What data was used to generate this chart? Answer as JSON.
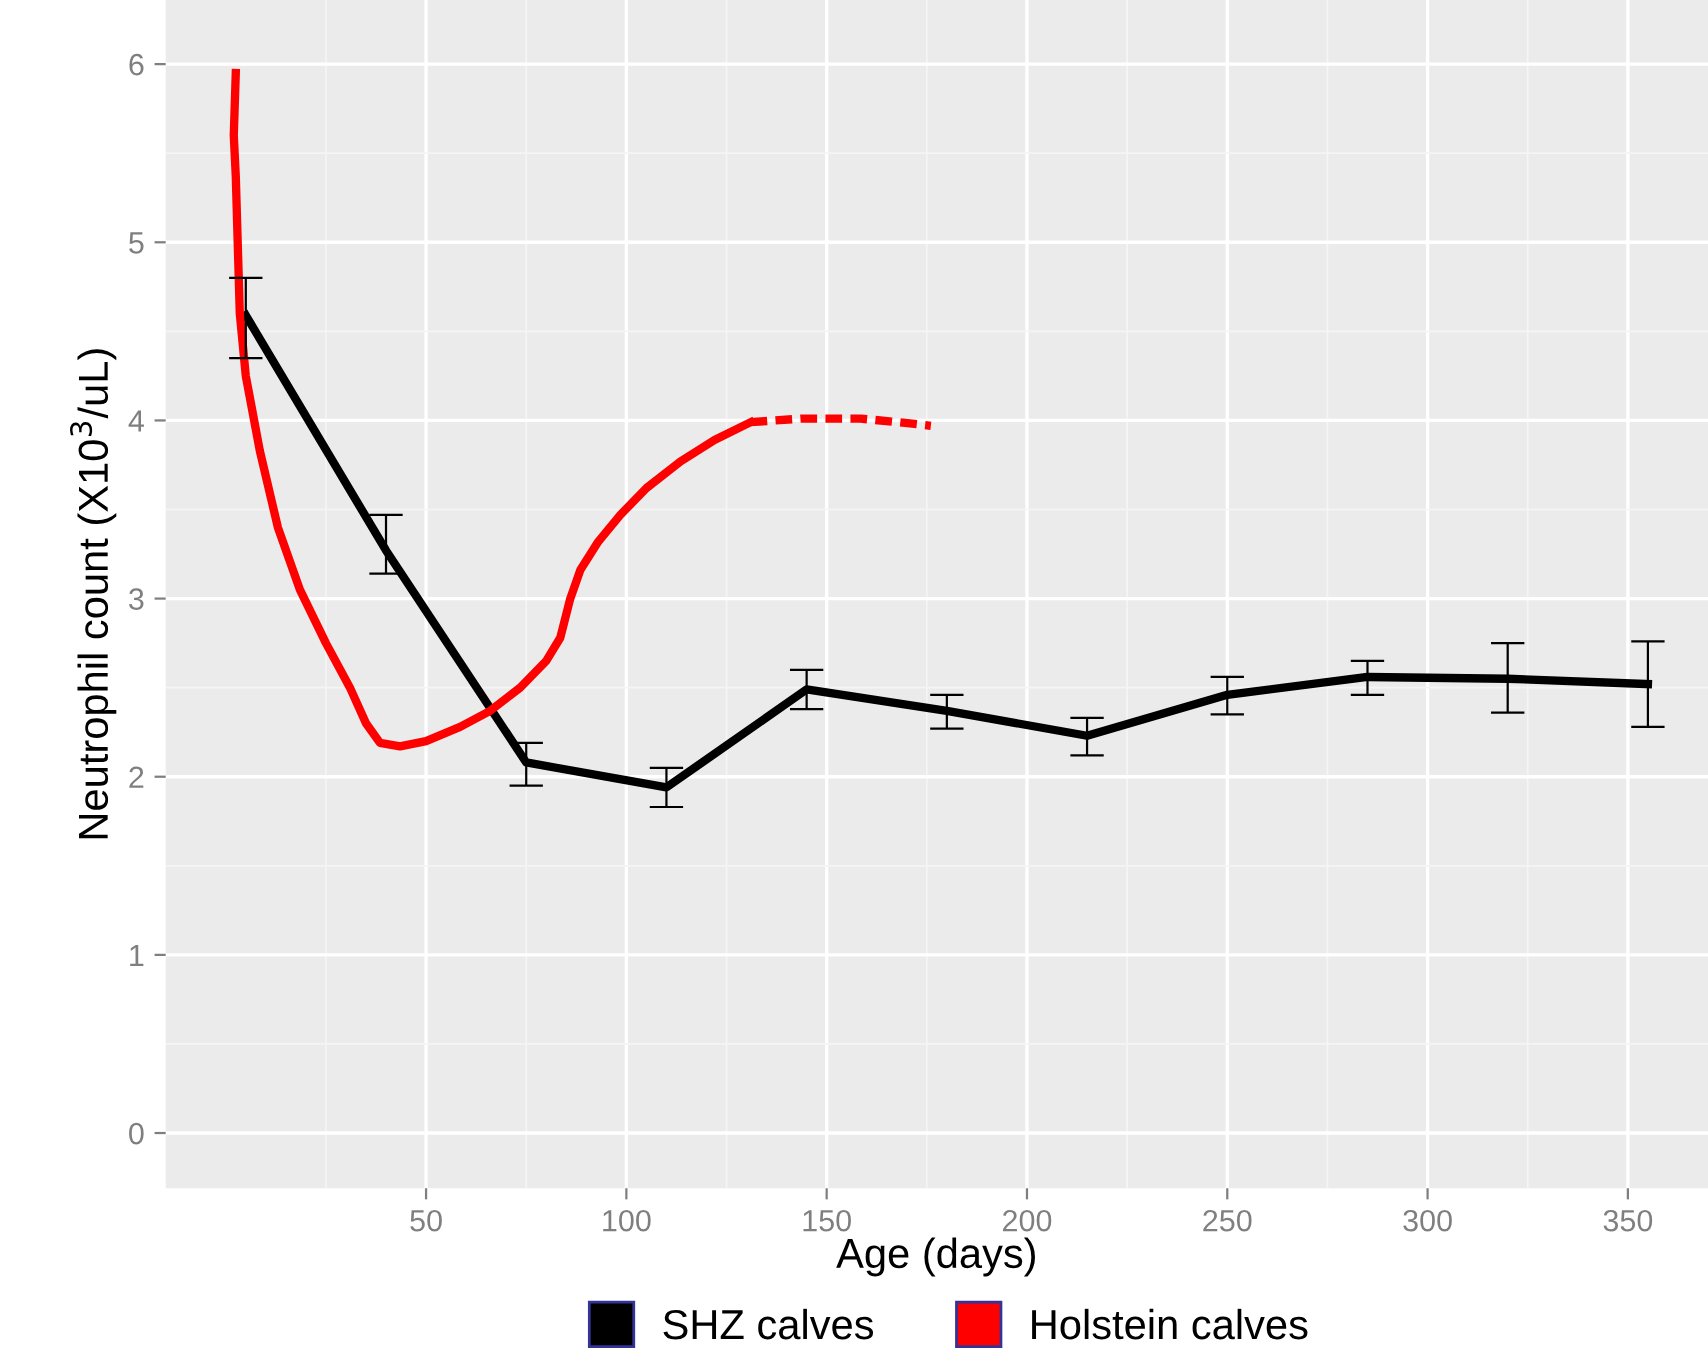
{
  "chart_data": {
    "type": "line",
    "xlabel": "Age (days)",
    "ylabel": "Neutrophil count (X10$^{3}$/uL)",
    "xlim": [
      -15,
      370
    ],
    "ylim": [
      -0.31,
      6.36
    ],
    "xticks": [
      50,
      100,
      150,
      200,
      250,
      300,
      350
    ],
    "yticks": [
      0,
      1,
      2,
      3,
      4,
      5,
      6
    ],
    "grid": true,
    "legend": "bottom",
    "series": [
      {
        "name": "SHZ calves",
        "color": "#000000",
        "line_style": "solid",
        "x": [
          5,
          40,
          75,
          110,
          145,
          180,
          215,
          250,
          285,
          320,
          355
        ],
        "values": [
          4.59,
          3.27,
          2.08,
          1.94,
          2.49,
          2.37,
          2.23,
          2.46,
          2.56,
          2.55,
          2.52
        ],
        "errors": [
          [
            4.35,
            4.8
          ],
          [
            3.14,
            3.47
          ],
          [
            1.95,
            2.19
          ],
          [
            1.83,
            2.05
          ],
          [
            2.38,
            2.6
          ],
          [
            2.27,
            2.46
          ],
          [
            2.12,
            2.33
          ],
          [
            2.35,
            2.56
          ],
          [
            2.46,
            2.65
          ],
          [
            2.36,
            2.75
          ],
          [
            2.28,
            2.76
          ]
        ]
      },
      {
        "name": "Holstein calves",
        "color": "#ff0000",
        "line_style": "solid",
        "x": [
          2.5,
          2,
          2.5,
          3.5,
          5,
          8.5,
          13,
          18.5,
          25,
          31,
          35,
          38.5,
          43.5,
          50,
          58.5,
          66,
          73.5,
          80,
          83.5,
          86,
          88.5,
          93,
          98.5,
          105,
          113.5,
          122,
          131
        ],
        "values": [
          5.95,
          5.6,
          5.37,
          4.6,
          4.25,
          3.83,
          3.4,
          3.05,
          2.75,
          2.5,
          2.3,
          2.19,
          2.17,
          2.2,
          2.28,
          2.37,
          2.5,
          2.65,
          2.78,
          3.0,
          3.16,
          3.32,
          3.47,
          3.62,
          3.77,
          3.89,
          3.99
        ]
      },
      {
        "color": "#ff0000",
        "line_style": "dashed",
        "x": [
          131,
          143.5,
          158.5,
          168,
          176
        ],
        "values": [
          3.99,
          4.01,
          4.01,
          3.99,
          3.97
        ]
      }
    ]
  }
}
